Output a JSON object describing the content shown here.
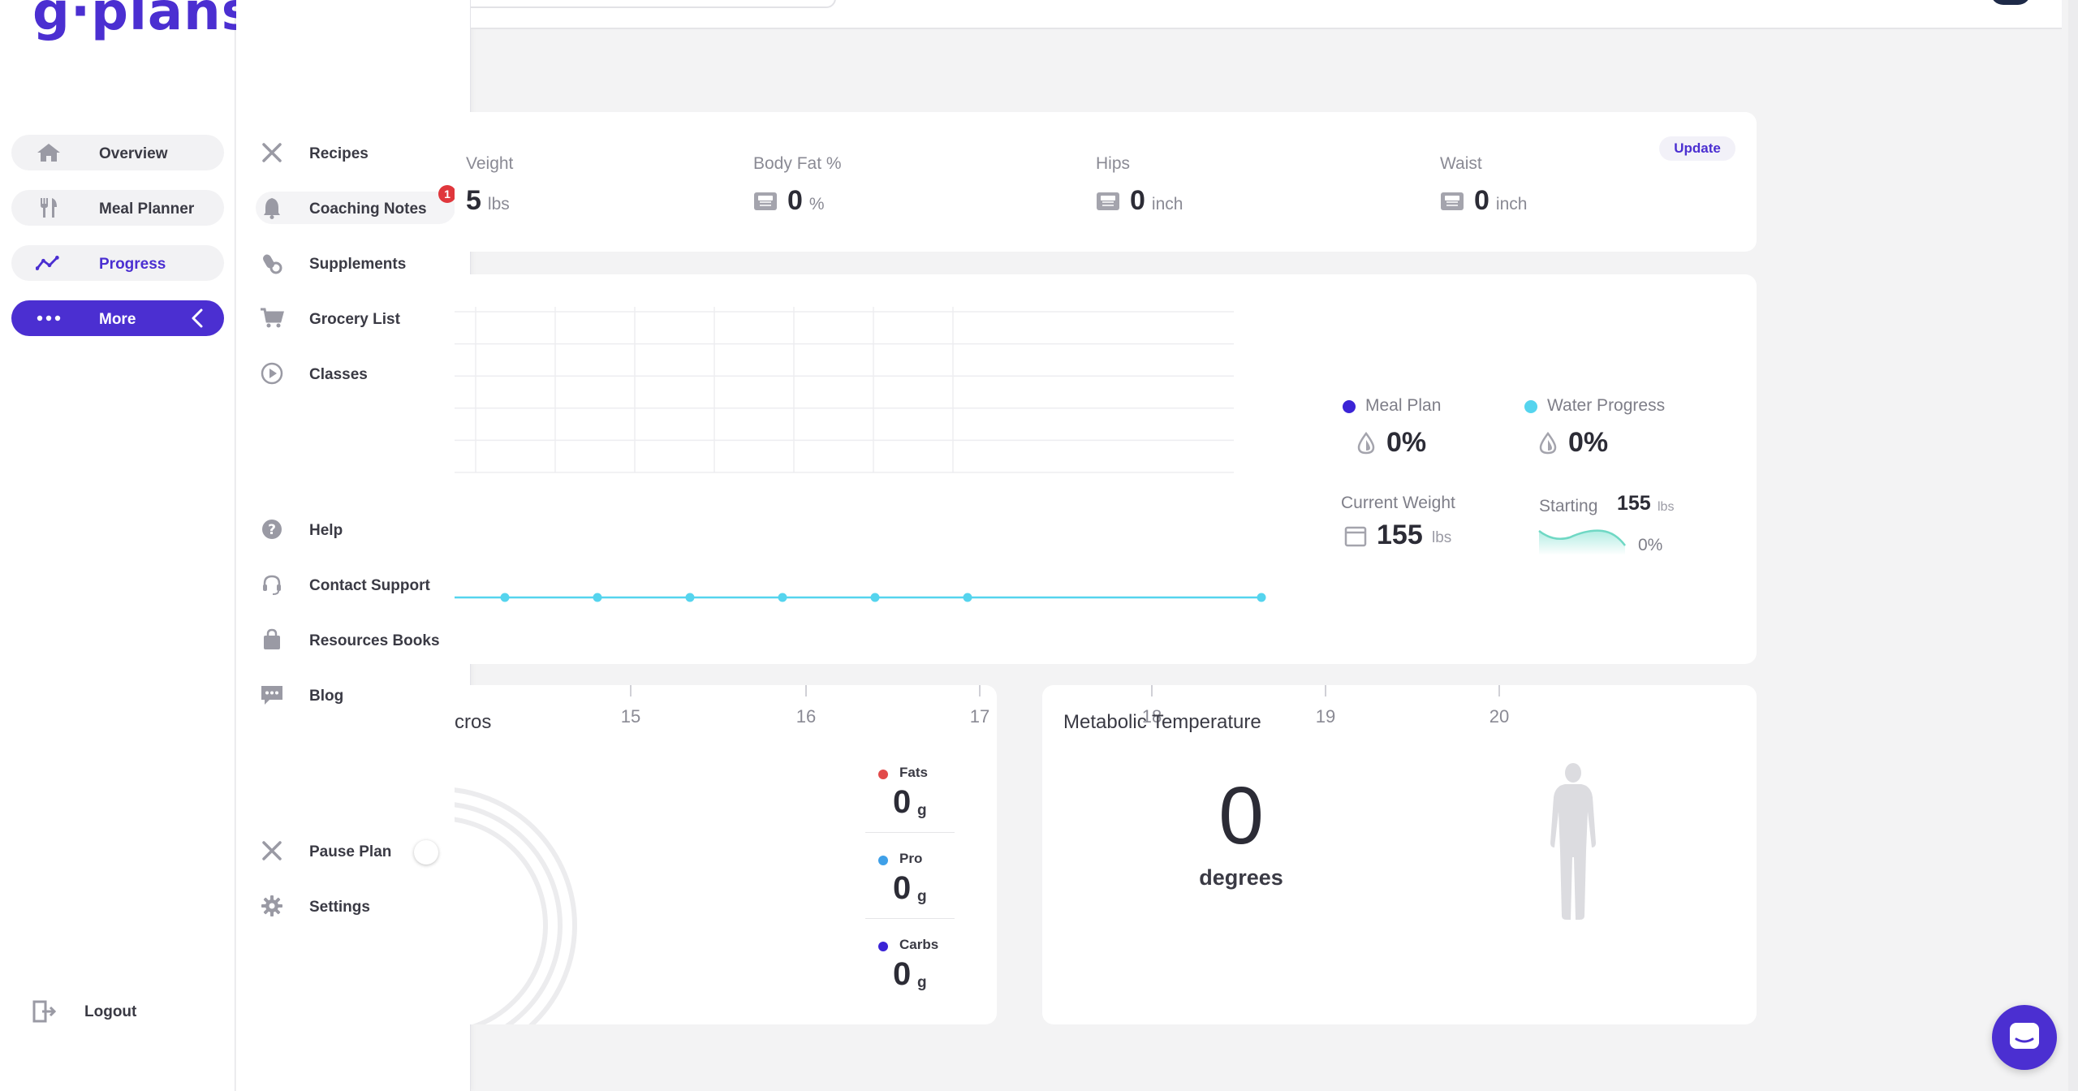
{
  "brand": {
    "logo_text": "g·plans",
    "accent": "#4b2fd1"
  },
  "sidebar": {
    "items": [
      {
        "label": "Overview",
        "icon": "home-icon"
      },
      {
        "label": "Meal Planner",
        "icon": "utensils-icon"
      },
      {
        "label": "Progress",
        "icon": "progress-chart-icon"
      },
      {
        "label": "More",
        "icon": "dots-icon"
      }
    ],
    "logout_label": "Logout"
  },
  "submenu": {
    "items": [
      {
        "label": "Recipes",
        "icon": "utensils-cross-icon"
      },
      {
        "label": "Coaching Notes",
        "icon": "bell-icon",
        "badge": "1"
      },
      {
        "label": "Supplements",
        "icon": "supplements-icon"
      },
      {
        "label": "Grocery List",
        "icon": "cart-icon"
      },
      {
        "label": "Classes",
        "icon": "play-circle-icon"
      },
      {
        "label": "Help",
        "icon": "help-icon"
      },
      {
        "label": "Contact Support",
        "icon": "headset-icon"
      },
      {
        "label": "Resources Books",
        "icon": "bag-icon"
      },
      {
        "label": "Blog",
        "icon": "chat-icon"
      },
      {
        "label": "Pause Plan",
        "icon": "pause-plan-icon"
      },
      {
        "label": "Settings",
        "icon": "gear-icon"
      }
    ]
  },
  "measurements": {
    "update_label": "Update",
    "items": [
      {
        "label": "Veight",
        "value": "5",
        "unit": "lbs"
      },
      {
        "label": "Body Fat %",
        "value": "0",
        "unit": "%"
      },
      {
        "label": "Hips",
        "value": "0",
        "unit": "inch"
      },
      {
        "label": "Waist",
        "value": "0",
        "unit": "inch"
      }
    ]
  },
  "progress": {
    "legend": [
      {
        "label": "Meal Plan",
        "value": "0%",
        "color": "#3b24d6"
      },
      {
        "label": "Water Progress",
        "value": "0%",
        "color": "#55d4ee"
      }
    ],
    "current_weight_label": "Current Weight",
    "current_weight_value": "155",
    "current_weight_unit": "lbs",
    "starting_label": "Starting",
    "starting_value": "155",
    "starting_unit": "lbs",
    "starting_change": "0%"
  },
  "chart_data": {
    "type": "line",
    "series": [
      {
        "values": [
          0,
          0,
          0,
          0,
          0,
          0
        ],
        "color": "#55d4ee"
      }
    ],
    "ylim": [
      0,
      100
    ],
    "grid": true
  },
  "macros": {
    "title": "cros",
    "ticks": [
      "15",
      "16",
      "17"
    ],
    "items": [
      {
        "name": "Fats",
        "value": "0",
        "unit": "g",
        "color": "#e24a4a"
      },
      {
        "name": "Pro",
        "value": "0",
        "unit": "g",
        "color": "#3fa0e8"
      },
      {
        "name": "Carbs",
        "value": "0",
        "unit": "g",
        "color": "#3b24d6"
      }
    ]
  },
  "metabolic": {
    "title": "Metabolic Temperature",
    "ticks": [
      "18",
      "19",
      "20"
    ],
    "value": "0",
    "unit": "degrees"
  }
}
